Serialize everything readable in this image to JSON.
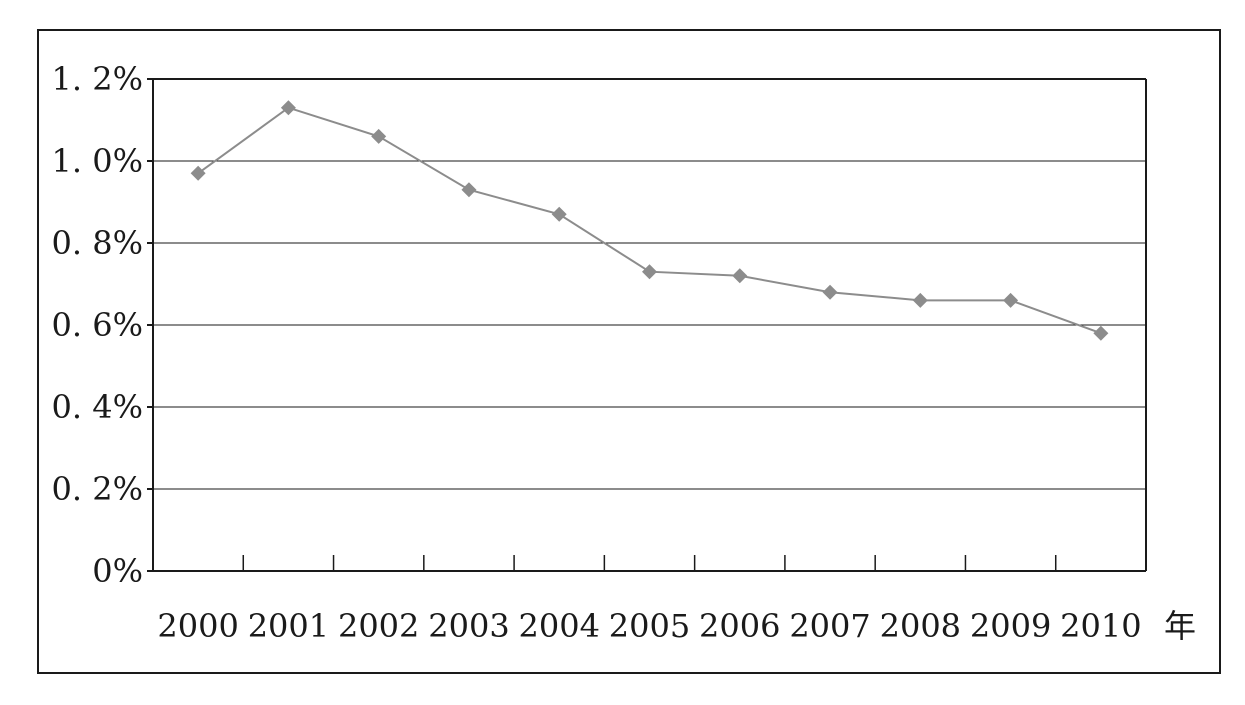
{
  "chart_data": {
    "type": "line",
    "title": "",
    "xlabel": "年",
    "ylabel": "",
    "categories": [
      "2000",
      "2001",
      "2002",
      "2003",
      "2004",
      "2005",
      "2006",
      "2007",
      "2008",
      "2009",
      "2010"
    ],
    "series": [
      {
        "values": [
          0.97,
          1.13,
          1.06,
          0.93,
          0.87,
          0.73,
          0.72,
          0.68,
          0.66,
          0.66,
          0.58
        ]
      }
    ],
    "yunit": "%",
    "ylim": [
      0,
      1.2
    ],
    "yticks": [
      0,
      0.2,
      0.4,
      0.6,
      0.8,
      1.0,
      1.2
    ],
    "ytick_labels": [
      "0%",
      "0. 2%",
      "0. 4%",
      "0. 6%",
      "0. 8%",
      "1. 0%",
      "1. 2%"
    ],
    "grid": "horizontal",
    "legend": "none",
    "marker": "diamond",
    "colors": {
      "series": "#8c8c8c",
      "axis": "#1a1a1a",
      "grid": "#1a1a1a",
      "frame": "#1a1a1a"
    }
  }
}
